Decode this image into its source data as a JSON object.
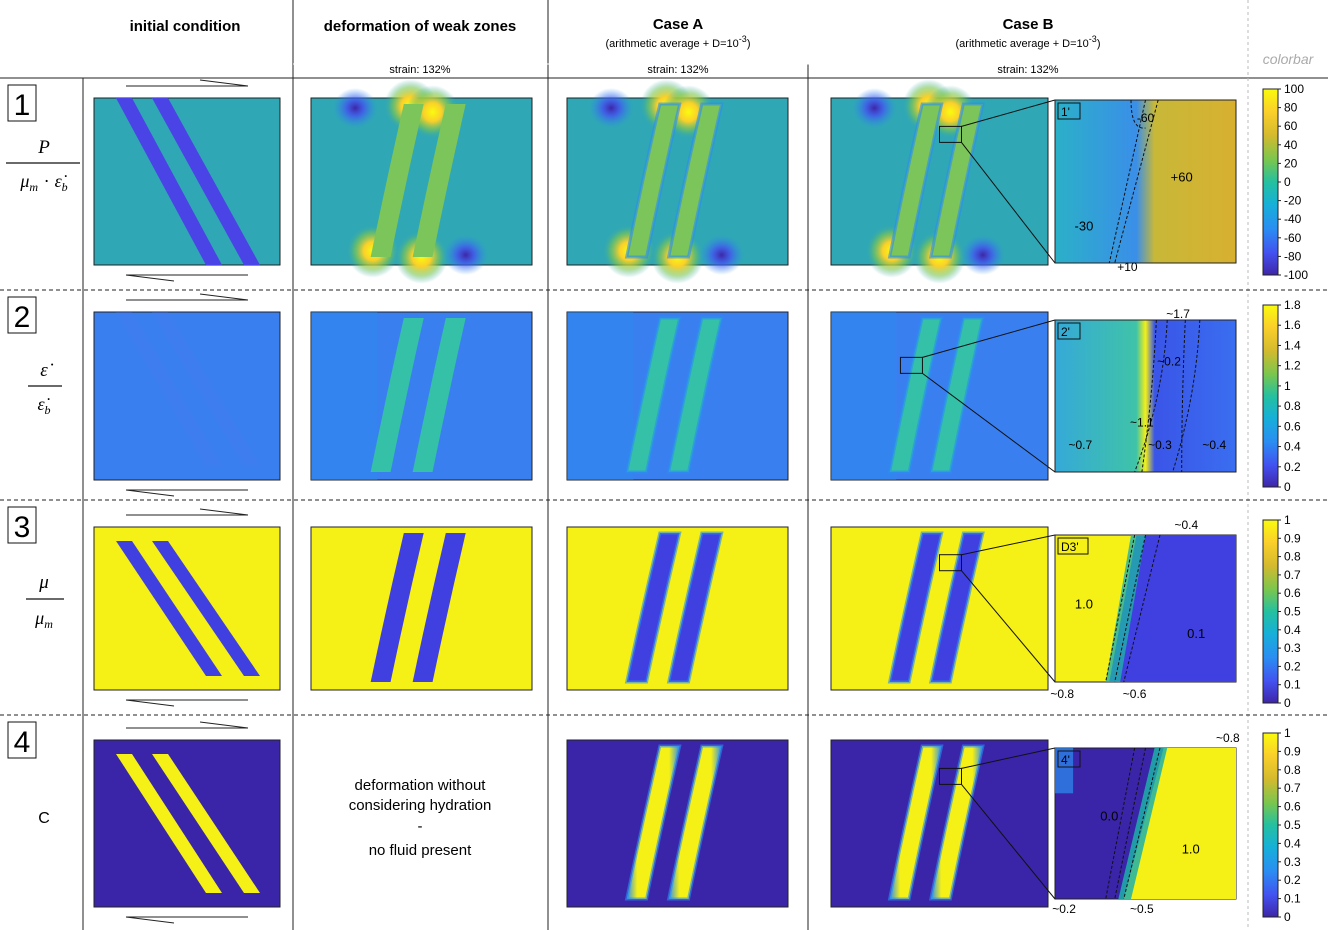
{
  "headers": {
    "initial": "initial condition",
    "deformation": "deformation of weak zones",
    "caseA": "Case A",
    "caseA_sub_pre": "(arithmetic average + D=10",
    "caseA_sub_exp": "-3",
    "caseA_sub_post": ")",
    "caseB": "Case B",
    "caseB_sub_pre": "(arithmetic average + D=10",
    "caseB_sub_exp": "-3",
    "caseB_sub_post": ")",
    "colorbar": "colorbar",
    "strain": "strain: 132%"
  },
  "rows": [
    {
      "number": "1",
      "zoom_label": "1'",
      "colors": {
        "bg": "#2fa7b5",
        "band": "#4a44e6",
        "band_def": "#7cc55a"
      }
    },
    {
      "number": "2",
      "zoom_label": "2'",
      "colors": {
        "bg": "#3a7ff0",
        "band": "#4c78f0",
        "band_def": "#35c0a8"
      }
    },
    {
      "number": "3",
      "zoom_label": "D3'",
      "colors": {
        "bg": "#f5f015",
        "band": "#4040e0",
        "band_def": "#4040e0"
      }
    },
    {
      "number": "4",
      "zoom_label": "4'",
      "colors": {
        "bg": "#3a25a8",
        "band": "#f5f015",
        "band_def": "#f5f015"
      }
    }
  ],
  "row_labels": {
    "r1_num": "P",
    "r1_den_a": "μ",
    "r1_den_a_sub": "m",
    "r1_dot": "·",
    "r1_den_b": "ε̇",
    "r1_den_b_sub": "b",
    "r2_num": "ε̇",
    "r2_den": "ε̇",
    "r2_den_sub": "b",
    "r3_num": "μ",
    "r3_den": "μ",
    "r3_den_sub": "m",
    "r4": "C"
  },
  "row4_note": [
    "deformation without",
    "considering hydration",
    "-",
    "no fluid present"
  ],
  "zoom_annotations": {
    "z1": [
      "-60",
      "+60",
      "-30",
      "+10"
    ],
    "z2": [
      "~1.7",
      "~0.2",
      "~1.1",
      "~0.7",
      "~0.3",
      "~0.4"
    ],
    "z3": [
      "~0.4",
      "1.0",
      "0.1",
      "~0.8",
      "~0.6"
    ],
    "z4": [
      "~0.8",
      "0.0",
      "1.0",
      "~0.2",
      "~0.5"
    ]
  },
  "colorbars": [
    {
      "ticks": [
        "100",
        "80",
        "60",
        "40",
        "20",
        "0",
        "-20",
        "-40",
        "-60",
        "-80",
        "-100"
      ]
    },
    {
      "ticks": [
        "1.8",
        "1.6",
        "1.4",
        "1.2",
        "1",
        "0.8",
        "0.6",
        "0.4",
        "0.2",
        "0"
      ]
    },
    {
      "ticks": [
        "1",
        "0.9",
        "0.8",
        "0.7",
        "0.6",
        "0.5",
        "0.4",
        "0.3",
        "0.2",
        "0.1",
        "0"
      ]
    },
    {
      "ticks": [
        "1",
        "0.9",
        "0.8",
        "0.7",
        "0.6",
        "0.5",
        "0.4",
        "0.3",
        "0.2",
        "0.1",
        "0"
      ]
    }
  ],
  "colormap": [
    "#3e26a8",
    "#4352f0",
    "#2a8ef2",
    "#16b0d8",
    "#25c0a0",
    "#7ac64e",
    "#d4ba2e",
    "#fbd02a",
    "#f9fb0e"
  ]
}
